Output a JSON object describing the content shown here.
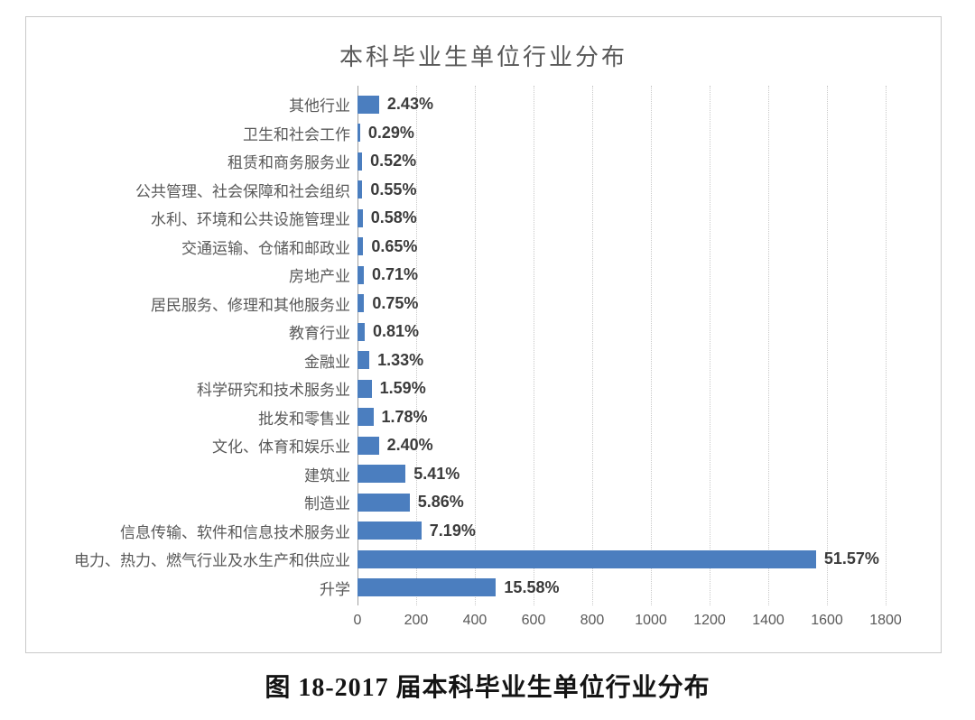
{
  "caption": "图 18-2017 届本科毕业生单位行业分布",
  "chart_data": {
    "type": "bar",
    "orientation": "horizontal",
    "title": "本科毕业生单位行业分布",
    "categories": [
      "其他行业",
      "卫生和社会工作",
      "租赁和商务服务业",
      "公共管理、社会保障和社会组织",
      "水利、环境和公共设施管理业",
      "交通运输、仓储和邮政业",
      "房地产业",
      "居民服务、修理和其他服务业",
      "教育行业",
      "金融业",
      "科学研究和技术服务业",
      "批发和零售业",
      "文化、体育和娱乐业",
      "建筑业",
      "制造业",
      "信息传输、软件和信息技术服务业",
      "电力、热力、燃气行业及水生产和供应业",
      "升学"
    ],
    "values_percent": [
      2.43,
      0.29,
      0.52,
      0.55,
      0.58,
      0.65,
      0.71,
      0.75,
      0.81,
      1.33,
      1.59,
      1.78,
      2.4,
      5.41,
      5.86,
      7.19,
      51.57,
      15.58
    ],
    "value_labels": [
      "2.43%",
      "0.29%",
      "0.52%",
      "0.55%",
      "0.58%",
      "0.65%",
      "0.71%",
      "0.75%",
      "0.81%",
      "1.33%",
      "1.59%",
      "1.78%",
      "2.40%",
      "5.41%",
      "5.86%",
      "7.19%",
      "51.57%",
      "15.58%"
    ],
    "x_ticks": [
      0,
      200,
      400,
      600,
      800,
      1000,
      1200,
      1400,
      1600,
      1800
    ],
    "xlim": [
      0,
      1800
    ],
    "axis_units_per_percent": 30.3,
    "bar_color": "#4b7ebf",
    "grid": true,
    "legend_position": "none"
  }
}
